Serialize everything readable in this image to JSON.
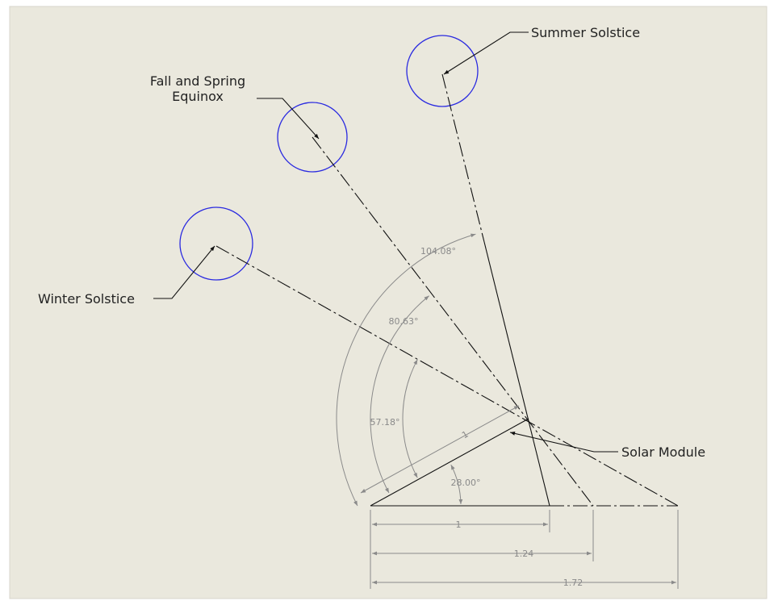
{
  "labels": {
    "summer": "Summer Solstice",
    "equinox": [
      "Fall and Spring",
      "Equinox"
    ],
    "winter": "Winter Solstice",
    "module": "Solar Module"
  },
  "dimensions": {
    "summer_angle": "104.08°",
    "equinox_angle": "80.63°",
    "winter_angle": "57.18°",
    "tilt_angle": "28.00°",
    "module_length": "1",
    "summer_base": "1",
    "equinox_base": "1.24",
    "winter_base": "1.72"
  }
}
